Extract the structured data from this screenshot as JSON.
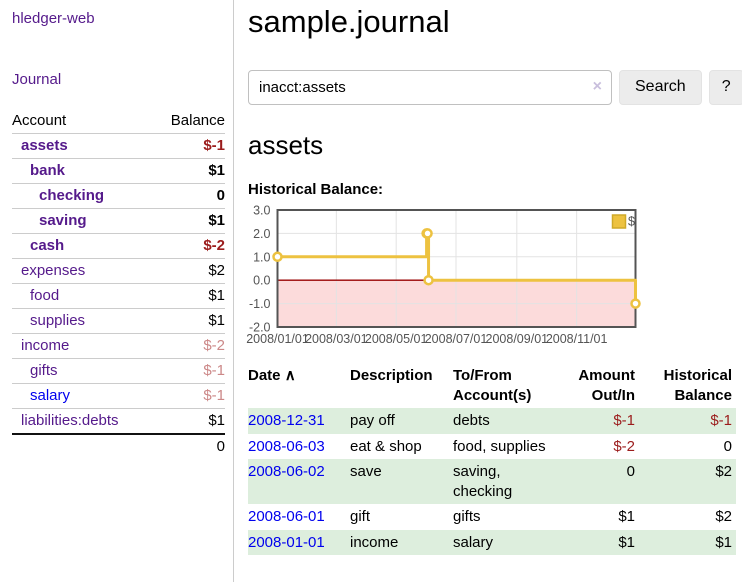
{
  "colors": {
    "link_purple": "#551a8b",
    "link_blue": "#0000ee",
    "negative_strong": "#9b1c1c",
    "negative_muted": "#cc8888",
    "row_stripe_green": "#ddeedd",
    "chart_series": "#edc240",
    "chart_negative_fill": "#fcdbdb",
    "chart_zero_line": "#990000"
  },
  "sidebar": {
    "brand": "hledger-web",
    "nav_journal": "Journal",
    "accounts_table": {
      "col_account": "Account",
      "col_balance": "Balance",
      "rows": [
        {
          "name": "assets",
          "balance": "$-1"
        },
        {
          "name": "bank",
          "balance": "$1"
        },
        {
          "name": "checking",
          "balance": "0"
        },
        {
          "name": "saving",
          "balance": "$1"
        },
        {
          "name": "cash",
          "balance": "$-2"
        },
        {
          "name": "expenses",
          "balance": "$2"
        },
        {
          "name": "food",
          "balance": "$1"
        },
        {
          "name": "supplies",
          "balance": "$1"
        },
        {
          "name": "income",
          "balance": "$-2"
        },
        {
          "name": "gifts",
          "balance": "$-1"
        },
        {
          "name": "salary",
          "balance": "$-1"
        },
        {
          "name": "liabilities:debts",
          "balance": "$1"
        }
      ],
      "total": "0"
    }
  },
  "main": {
    "title": "sample.journal",
    "search": {
      "value": "inacct:assets",
      "clear_icon": "×",
      "search_button": "Search",
      "help_button": "?"
    },
    "account_heading": "assets",
    "section_label": "Historical Balance:",
    "register": {
      "headers": {
        "date": "Date",
        "sort_caret": "∧",
        "description": "Description",
        "accounts": "To/From Account(s)",
        "amount": "Amount Out/In",
        "balance": "Historical Balance"
      },
      "rows": [
        {
          "date": "2008-12-31",
          "description": "pay off",
          "accounts": "debts",
          "amount": "$-1",
          "balance": "$-1"
        },
        {
          "date": "2008-06-03",
          "description": "eat & shop",
          "accounts": "food, supplies",
          "amount": "$-2",
          "balance": "0"
        },
        {
          "date": "2008-06-02",
          "description": "save",
          "accounts": "saving,\nchecking",
          "amount": "0",
          "balance": "$2"
        },
        {
          "date": "2008-06-01",
          "description": "gift",
          "accounts": "gifts",
          "amount": "$1",
          "balance": "$2"
        },
        {
          "date": "2008-01-01",
          "description": "income",
          "accounts": "salary",
          "amount": "$1",
          "balance": "$1"
        }
      ]
    }
  },
  "chart_data": {
    "type": "line",
    "step": true,
    "title": "Historical Balance:",
    "legend": {
      "label": "$",
      "position": "top-right"
    },
    "series": [
      {
        "name": "$",
        "color": "#edc240",
        "points": [
          [
            "2008-01-01",
            1
          ],
          [
            "2008-06-01",
            2
          ],
          [
            "2008-06-02",
            2
          ],
          [
            "2008-06-03",
            0
          ],
          [
            "2008-12-31",
            -1
          ]
        ]
      }
    ],
    "xrange": [
      "2008-01-01",
      "2008-12-31"
    ],
    "ylim": [
      -2,
      3
    ],
    "yticks": [
      3.0,
      2.0,
      1.0,
      0.0,
      -1.0,
      -2.0
    ],
    "ytick_labels": [
      "3.0",
      "2.0",
      "1.0",
      "0.0",
      "-1.0",
      "-2.0"
    ],
    "xtick_labels": [
      "2008/01/01",
      "2008/03/01",
      "2008/05/01",
      "2008/07/01",
      "2008/09/01",
      "2008/11/01"
    ],
    "grid": true,
    "negative_region": {
      "from": -2,
      "to": 0,
      "fill": "#fcdbdb",
      "border_color": "#990000"
    }
  }
}
